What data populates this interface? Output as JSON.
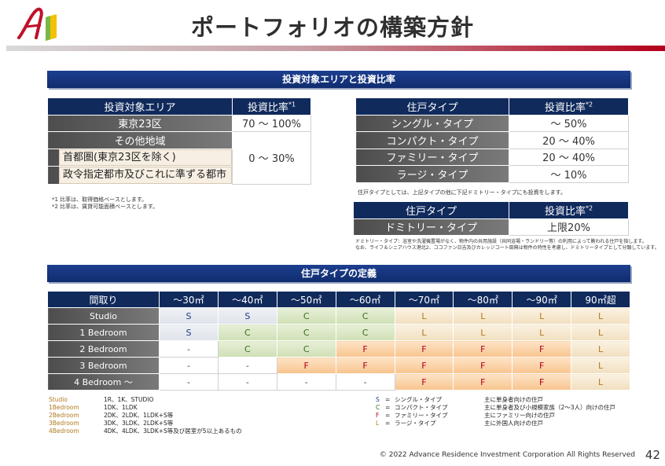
{
  "title": "ポートフォリオの構築方針",
  "section1": "投資対象エリアと投資比率",
  "area_table": {
    "h1": "投資対象エリア",
    "h2": "投資比率",
    "h2_sup": "*1",
    "r1a": "東京23区",
    "r1b": "70 ～ 100%",
    "r2a": "その他地域",
    "r3a": "首都圏(東京23区を除く)",
    "r3b": "0 ～ 30%",
    "r4a": "政令指定都市及びこれに準ずる都市"
  },
  "notes1": [
    "*1 比率は、取得価格ベースとします。",
    "*2 比率は、賃貸可能面積ベースとします。"
  ],
  "type_table": {
    "h1": "住戸タイプ",
    "h2": "投資比率",
    "h2_sup": "*2",
    "rows": [
      [
        "シングル・タイプ",
        "～ 50%"
      ],
      [
        "コンパクト・タイプ",
        "20 ～ 40%"
      ],
      [
        "ファミリー・タイプ",
        "20 ～ 40%"
      ],
      [
        "ラージ・タイプ",
        "～ 10%"
      ]
    ]
  },
  "note_type": "住戸タイプとしては、上記タイプの他に下記ドミトリー・タイプにも投資をします。",
  "dorm_table": {
    "h1": "住戸タイプ",
    "h2": "投資比率",
    "h2_sup": "*2",
    "r1a": "ドミトリー・タイプ",
    "r1b": "上限20%"
  },
  "note_dorm": [
    "ドミトリー・タイプ：浴室や洗濯機置場がなく、物件内の共用施設（共同浴場・ランドリー等）の利用によって賄われる住戸を指します。",
    "なお、ライフ＆シニアハウス港北2、ココファン日吉及びカレッジコート田無は物件の特性を考慮し、ドミトリータイプとして分類しています。"
  ],
  "section2": "住戸タイプの定義",
  "def_table": {
    "header": [
      "間取り",
      "～30㎡",
      "～40㎡",
      "～50㎡",
      "～60㎡",
      "～70㎡",
      "～80㎡",
      "～90㎡",
      "90㎡超"
    ],
    "rows": [
      {
        "label": "Studio",
        "cells": [
          "S",
          "S",
          "C",
          "C",
          "L",
          "L",
          "L",
          "L"
        ]
      },
      {
        "label": "1 Bedroom",
        "cells": [
          "S",
          "C",
          "C",
          "C",
          "L",
          "L",
          "L",
          "L"
        ]
      },
      {
        "label": "2 Bedroom",
        "cells": [
          "-",
          "C",
          "C",
          "F",
          "F",
          "F",
          "F",
          "L"
        ]
      },
      {
        "label": "3 Bedroom",
        "cells": [
          "-",
          "-",
          "F",
          "F",
          "F",
          "F",
          "F",
          "L"
        ]
      },
      {
        "label": "4 Bedroom ～",
        "cells": [
          "-",
          "-",
          "-",
          "-",
          "F",
          "F",
          "F",
          "L"
        ]
      }
    ]
  },
  "legend_left": [
    [
      "Studio",
      "1R、1K、STUDIO"
    ],
    [
      "1Bedroom",
      "1DK、1LDK"
    ],
    [
      "2Bedroom",
      "2DK、2LDK、1LDK+S等"
    ],
    [
      "3Bedroom",
      "3DK、3LDK、2LDK+S等"
    ],
    [
      "4Bedroom",
      "4DK、4LDK、3LDK+S等及び居室が5以上あるもの"
    ]
  ],
  "legend_right": [
    [
      "S",
      "=",
      "シングル・タイプ",
      "主に単身者向けの住戸"
    ],
    [
      "C",
      "=",
      "コンパクト・タイプ",
      "主に単身者及び小規模家族（2～3人）向けの住戸"
    ],
    [
      "F",
      "=",
      "ファミリー・タイプ",
      "主にファミリー向けの住戸"
    ],
    [
      "L",
      "=",
      "ラージ・タイプ",
      "主に外国人向けの住戸"
    ]
  ],
  "footer": "© 2022 Advance Residence Investment Corporation All Rights Reserved",
  "page_no": "42",
  "colors": {
    "navy": "#102a5c",
    "accent_red": "#b3001b",
    "label_gold": "#b07a1f"
  }
}
